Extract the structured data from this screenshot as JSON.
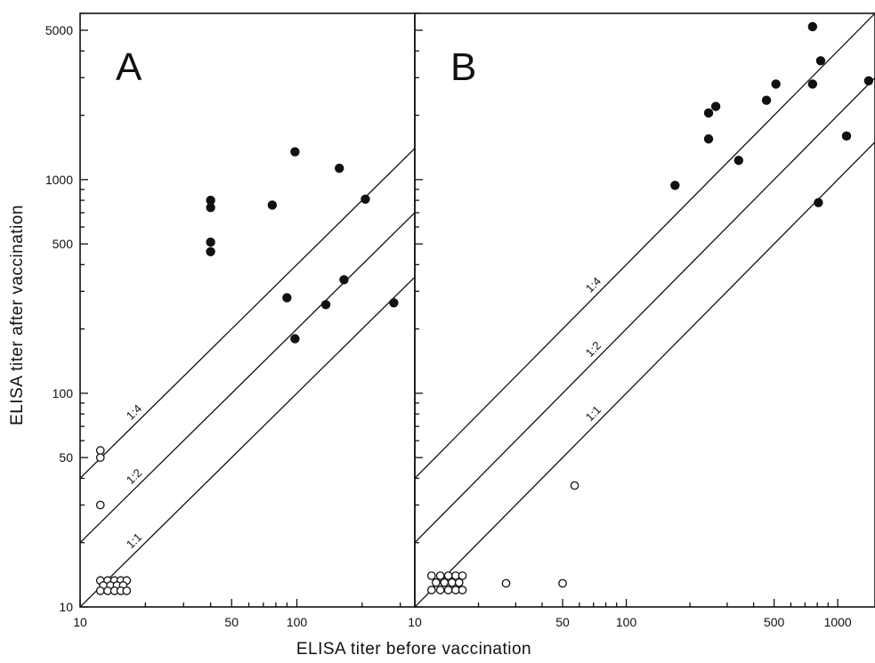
{
  "chart_data": {
    "type": "scatter",
    "xlabel": "ELISA titer before vaccination",
    "ylabel": "ELISA titer after vaccination",
    "scale": "log",
    "grid": false,
    "ylim": [
      10,
      6000
    ],
    "yticks": [
      10,
      50,
      100,
      500,
      1000,
      5000
    ],
    "ytick_labels": [
      "10",
      "50",
      "100",
      "500",
      "1000",
      "5000"
    ],
    "ratio_lines": [
      {
        "label": "1:4",
        "factor": 4
      },
      {
        "label": "1:2",
        "factor": 2
      },
      {
        "label": "1:1",
        "factor": 1
      }
    ],
    "panels": [
      {
        "letter": "A",
        "xlim": [
          10,
          350
        ],
        "xticks": [
          10,
          50,
          100
        ],
        "xtick_labels": [
          "10",
          "50",
          "100"
        ],
        "series": [
          {
            "marker": "filled",
            "points": [
              [
                40,
                800
              ],
              [
                40,
                740
              ],
              [
                40,
                510
              ],
              [
                40,
                460
              ],
              [
                77,
                760
              ],
              [
                98,
                1350
              ],
              [
                157,
                1130
              ],
              [
                207,
                810
              ],
              [
                90,
                280
              ],
              [
                98,
                180
              ],
              [
                136,
                260
              ],
              [
                165,
                340
              ],
              [
                280,
                265
              ]
            ]
          },
          {
            "marker": "open",
            "points": [
              [
                12.4,
                54
              ],
              [
                12.4,
                50
              ],
              [
                12.4,
                30
              ],
              [
                12.4,
                13.3
              ],
              [
                13.4,
                13.3
              ],
              [
                14.4,
                13.3
              ],
              [
                15.4,
                13.3
              ],
              [
                16.4,
                13.3
              ],
              [
                12.8,
                12.6
              ],
              [
                13.8,
                12.6
              ],
              [
                14.8,
                12.6
              ],
              [
                15.8,
                12.6
              ],
              [
                12.4,
                11.9
              ],
              [
                13.4,
                11.9
              ],
              [
                14.4,
                11.9
              ],
              [
                15.4,
                11.9
              ],
              [
                16.4,
                11.9
              ]
            ]
          }
        ]
      },
      {
        "letter": "B",
        "xlim": [
          10,
          1500
        ],
        "xticks": [
          10,
          50,
          100,
          500,
          1000
        ],
        "xtick_labels": [
          "10",
          "50",
          "100",
          "500",
          "1000"
        ],
        "series": [
          {
            "marker": "filled",
            "points": [
              [
                760,
                5200
              ],
              [
                830,
                3600
              ],
              [
                760,
                2800
              ],
              [
                510,
                2800
              ],
              [
                1400,
                2900
              ],
              [
                460,
                2350
              ],
              [
                265,
                2200
              ],
              [
                245,
                2050
              ],
              [
                245,
                1550
              ],
              [
                1100,
                1600
              ],
              [
                340,
                1230
              ],
              [
                170,
                940
              ],
              [
                810,
                780
              ]
            ]
          },
          {
            "marker": "open",
            "points": [
              [
                57,
                37
              ],
              [
                27,
                12.9
              ],
              [
                50,
                12.9
              ],
              [
                12.0,
                14.0
              ],
              [
                13.2,
                14.0
              ],
              [
                14.4,
                14.0
              ],
              [
                15.6,
                14.0
              ],
              [
                16.8,
                14.0
              ],
              [
                12.6,
                13.0
              ],
              [
                13.8,
                13.0
              ],
              [
                15.0,
                13.0
              ],
              [
                16.2,
                13.0
              ],
              [
                12.0,
                12.0
              ],
              [
                13.2,
                12.0
              ],
              [
                14.4,
                12.0
              ],
              [
                15.6,
                12.0
              ],
              [
                16.8,
                12.0
              ]
            ]
          }
        ]
      }
    ]
  }
}
